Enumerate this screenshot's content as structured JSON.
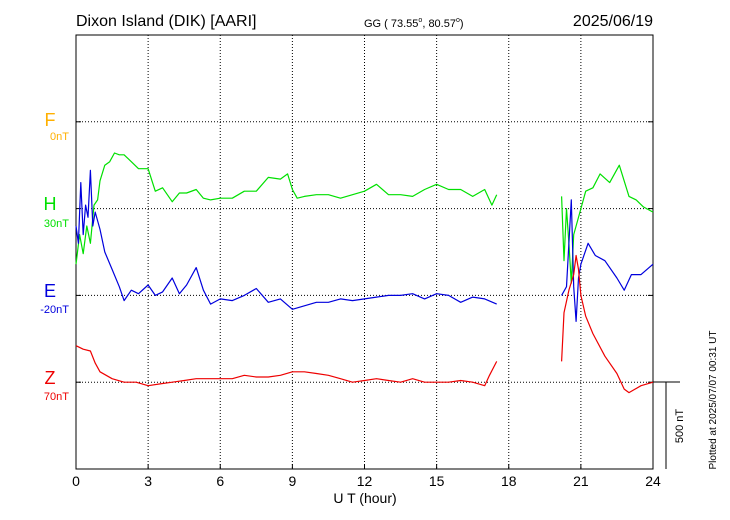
{
  "header": {
    "station": "Dixon Island (DIK)  [AARI]",
    "gg": "GG ( 73.55",
    "gg_lat_deg": "o",
    "gg_sep": ",  80.57",
    "gg_lon_deg": "o",
    "gg_close": ")",
    "date": "2025/06/19"
  },
  "x_axis": {
    "label": "U T (hour)",
    "ticks": [
      "0",
      "3",
      "6",
      "9",
      "12",
      "15",
      "18",
      "21",
      "24"
    ]
  },
  "panels": [
    {
      "key": "F",
      "label": "F",
      "baseline": "0nT",
      "color": "#ffb000"
    },
    {
      "key": "H",
      "label": "H",
      "baseline": "30nT",
      "color": "#00e000"
    },
    {
      "key": "E",
      "label": "E",
      "baseline": "-20nT",
      "color": "#0000dd"
    },
    {
      "key": "Z",
      "label": "Z",
      "baseline": "70nT",
      "color": "#ee0000"
    }
  ],
  "scale_bar": {
    "label": "500 nT"
  },
  "footer": {
    "plotted": "Plotted at 2025/07/07 00:31 UT"
  },
  "chart_data": {
    "type": "line",
    "title": "Dixon Island (DIK)  [AARI]",
    "xlabel": "U T (hour)",
    "ylabel": "",
    "xlim": [
      0,
      24
    ],
    "x_ticks": [
      0,
      3,
      6,
      9,
      12,
      15,
      18,
      21,
      24
    ],
    "grid": true,
    "scale_nT_per_division": 500,
    "units": "nT (deviation from panel baseline)",
    "series": [
      {
        "name": "H",
        "baseline_nT": 30,
        "segments": [
          {
            "x": [
              0.0,
              0.15,
              0.3,
              0.45,
              0.6,
              0.75,
              0.9,
              1.0,
              1.2,
              1.4,
              1.6,
              1.8,
              2.0,
              2.3,
              2.6,
              3.0,
              3.3,
              3.6,
              4.0,
              4.3,
              4.6,
              5.0,
              5.3,
              5.6,
              6.0,
              6.5,
              7.0,
              7.5,
              8.0,
              8.5,
              8.8,
              9.0,
              9.2,
              9.5,
              10.0,
              10.5,
              11.0,
              11.5,
              12.0,
              12.5,
              13.0,
              13.5,
              14.0,
              14.5,
              15.0,
              15.5,
              16.0,
              16.5,
              17.0,
              17.3,
              17.5
            ],
            "y": [
              -320,
              -150,
              -260,
              -100,
              -200,
              20,
              50,
              160,
              250,
              270,
              320,
              310,
              310,
              270,
              230,
              230,
              100,
              120,
              40,
              90,
              90,
              110,
              60,
              50,
              60,
              60,
              100,
              100,
              180,
              170,
              200,
              110,
              60,
              70,
              80,
              80,
              60,
              80,
              100,
              140,
              80,
              80,
              70,
              110,
              140,
              110,
              110,
              70,
              110,
              20,
              80
            ]
          },
          {
            "x": [
              20.2,
              20.3,
              20.4,
              20.5,
              20.6,
              20.7,
              20.8,
              21.0,
              21.2,
              21.5,
              21.8,
              22.2,
              22.6,
              23.0,
              23.3,
              23.6,
              24.0
            ],
            "y": [
              70,
              -300,
              0,
              -200,
              -430,
              -150,
              -100,
              0,
              100,
              120,
              200,
              150,
              250,
              70,
              50,
              10,
              -20
            ]
          }
        ]
      },
      {
        "name": "E",
        "baseline_nT": -20,
        "segments": [
          {
            "x": [
              0.0,
              0.1,
              0.2,
              0.3,
              0.4,
              0.5,
              0.6,
              0.7,
              0.8,
              1.0,
              1.2,
              1.5,
              1.8,
              2.0,
              2.3,
              2.6,
              3.0,
              3.3,
              3.6,
              4.0,
              4.3,
              4.6,
              5.0,
              5.3,
              5.6,
              6.0,
              6.5,
              7.0,
              7.5,
              8.0,
              8.5,
              9.0,
              9.5,
              10.0,
              10.5,
              11.0,
              11.5,
              12.0,
              12.5,
              13.0,
              13.5,
              14.0,
              14.5,
              15.0,
              15.5,
              16.0,
              16.5,
              17.0,
              17.5
            ],
            "y": [
              400,
              300,
              650,
              350,
              520,
              450,
              720,
              400,
              480,
              380,
              250,
              150,
              50,
              -30,
              30,
              10,
              60,
              0,
              20,
              100,
              10,
              60,
              160,
              30,
              -50,
              -20,
              -30,
              0,
              40,
              -40,
              -20,
              -80,
              -60,
              -40,
              -40,
              -20,
              -30,
              -20,
              -10,
              0,
              0,
              10,
              -20,
              10,
              0,
              -40,
              -10,
              -20,
              -50
            ]
          },
          {
            "x": [
              20.2,
              20.4,
              20.6,
              20.7,
              20.8,
              20.9,
              21.0,
              21.3,
              21.6,
              22.0,
              22.5,
              22.8,
              23.1,
              23.5,
              24.0
            ],
            "y": [
              0,
              50,
              550,
              50,
              -150,
              100,
              180,
              300,
              230,
              200,
              100,
              30,
              120,
              120,
              180
            ]
          }
        ]
      },
      {
        "name": "Z",
        "baseline_nT": 70,
        "segments": [
          {
            "x": [
              0.0,
              0.3,
              0.6,
              0.8,
              1.0,
              1.5,
              2.0,
              2.5,
              3.0,
              3.5,
              4.0,
              4.5,
              5.0,
              5.5,
              6.0,
              6.5,
              7.0,
              7.5,
              8.0,
              8.5,
              9.0,
              9.5,
              10.0,
              10.5,
              11.0,
              11.5,
              12.0,
              12.5,
              13.0,
              13.5,
              14.0,
              14.5,
              15.0,
              15.5,
              16.0,
              16.5,
              17.0,
              17.2,
              17.5
            ],
            "y": [
              210,
              190,
              180,
              110,
              60,
              20,
              0,
              0,
              -20,
              -10,
              0,
              10,
              20,
              20,
              20,
              20,
              40,
              30,
              30,
              40,
              60,
              60,
              50,
              40,
              20,
              0,
              10,
              20,
              10,
              0,
              20,
              0,
              0,
              0,
              10,
              0,
              -20,
              40,
              120
            ]
          },
          {
            "x": [
              20.2,
              20.3,
              20.5,
              20.7,
              20.8,
              20.9,
              21.0,
              21.2,
              21.5,
              22.0,
              22.5,
              22.8,
              23.0,
              23.5,
              24.0
            ],
            "y": [
              120,
              400,
              530,
              620,
              730,
              650,
              500,
              380,
              280,
              150,
              50,
              -40,
              -60,
              -20,
              0
            ]
          }
        ]
      }
    ]
  }
}
